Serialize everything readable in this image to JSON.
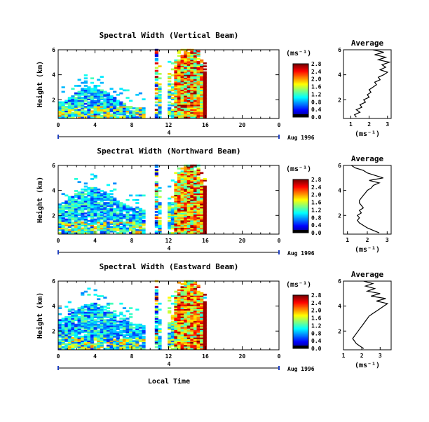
{
  "chart_data": [
    {
      "type": "heatmap",
      "title": "Spectral Width (Vertical Beam)",
      "ylabel": "Height (km)",
      "xlabel": "",
      "x_ticks": [
        "0",
        "4",
        "8",
        "12",
        "16",
        "20",
        "0"
      ],
      "y_ticks": [
        "2",
        "4",
        "6"
      ],
      "xlim": [
        0,
        24
      ],
      "ylim": [
        0.5,
        6
      ],
      "colorbar_unit": "(ms⁻¹)",
      "colorbar_ticks": [
        "0.0",
        "0.4",
        "0.8",
        "1.2",
        "1.6",
        "2.0",
        "2.4",
        "2.8"
      ],
      "date_label": "Aug 1996",
      "date_marker": "4",
      "grid": false
    },
    {
      "type": "heatmap",
      "title": "Spectral Width (Northward Beam)",
      "ylabel": "Height (km)",
      "xlabel": "",
      "x_ticks": [
        "0",
        "4",
        "8",
        "12",
        "16",
        "20",
        "0"
      ],
      "y_ticks": [
        "2",
        "4",
        "6"
      ],
      "xlim": [
        0,
        24
      ],
      "ylim": [
        0.5,
        6
      ],
      "colorbar_unit": "(ms⁻¹)",
      "colorbar_ticks": [
        "0.0",
        "0.4",
        "0.8",
        "1.2",
        "1.6",
        "2.0",
        "2.4",
        "2.8"
      ],
      "date_label": "Aug 1996",
      "date_marker": "4",
      "grid": false
    },
    {
      "type": "heatmap",
      "title": "Spectral Width (Eastward Beam)",
      "ylabel": "Height (km)",
      "xlabel": "Local Time",
      "x_ticks": [
        "0",
        "4",
        "8",
        "12",
        "16",
        "20",
        "0"
      ],
      "y_ticks": [
        "2",
        "4",
        "6"
      ],
      "xlim": [
        0,
        24
      ],
      "ylim": [
        0.5,
        6
      ],
      "colorbar_unit": "(ms⁻¹)",
      "colorbar_ticks": [
        "0.0",
        "0.4",
        "0.8",
        "1.2",
        "1.6",
        "2.0",
        "2.4",
        "2.8"
      ],
      "date_label": "Aug 1996",
      "date_marker": "4",
      "grid": false
    },
    {
      "type": "line",
      "title": "Average",
      "xlabel": "(ms⁻¹)",
      "x_ticks": [
        "1",
        "2",
        "3"
      ],
      "y_ticks": [
        "2",
        "4",
        "6"
      ],
      "xlim": [
        0.6,
        3.2
      ],
      "ylim": [
        0.5,
        6
      ],
      "x": [
        1.3,
        1.2,
        1.5,
        1.3,
        1.6,
        1.5,
        1.8,
        1.7,
        2.0,
        1.9,
        2.1,
        2.0,
        2.2,
        2.4,
        2.3,
        2.6,
        2.5,
        2.8,
        3.0,
        2.6,
        2.9,
        2.7,
        3.1,
        2.5,
        2.9,
        2.3,
        2.8,
        2.2
      ],
      "y": [
        0.6,
        0.8,
        1.0,
        1.2,
        1.4,
        1.6,
        1.8,
        2.0,
        2.2,
        2.4,
        2.6,
        2.8,
        3.0,
        3.2,
        3.4,
        3.6,
        3.8,
        4.0,
        4.2,
        4.4,
        4.6,
        4.8,
        5.0,
        5.2,
        5.4,
        5.6,
        5.8,
        6.0
      ]
    },
    {
      "type": "line",
      "title": "Average",
      "xlabel": "(ms⁻¹)",
      "x_ticks": [
        "1",
        "2",
        "3"
      ],
      "y_ticks": [
        "2",
        "4",
        "6"
      ],
      "xlim": [
        0.8,
        3.2
      ],
      "ylim": [
        0.5,
        6
      ],
      "x": [
        2.6,
        2.3,
        2.0,
        1.8,
        1.6,
        1.5,
        1.6,
        1.5,
        1.7,
        1.6,
        1.8,
        1.7,
        1.6,
        1.6,
        1.7,
        1.8,
        1.9,
        2.0,
        2.2,
        2.3,
        2.6,
        2.1,
        2.8,
        2.4,
        2.0,
        1.8,
        1.4,
        1.2
      ],
      "y": [
        0.6,
        0.8,
        1.0,
        1.2,
        1.4,
        1.6,
        1.8,
        2.0,
        2.2,
        2.4,
        2.6,
        2.8,
        3.0,
        3.2,
        3.4,
        3.6,
        3.8,
        4.0,
        4.2,
        4.4,
        4.6,
        4.8,
        5.0,
        5.2,
        5.4,
        5.6,
        5.8,
        6.0
      ]
    },
    {
      "type": "line",
      "title": "Average",
      "xlabel": "(ms⁻¹)",
      "x_ticks": [
        "1",
        "2",
        "3"
      ],
      "y_ticks": [
        "2",
        "4",
        "6"
      ],
      "xlim": [
        1.0,
        3.6
      ],
      "ylim": [
        0.5,
        6
      ],
      "x": [
        2.1,
        1.9,
        1.7,
        1.6,
        1.5,
        1.6,
        1.7,
        1.8,
        1.9,
        2.0,
        2.1,
        2.2,
        2.3,
        2.4,
        2.6,
        2.8,
        3.0,
        3.2,
        3.4,
        2.8,
        3.3,
        2.5,
        3.0,
        2.3,
        2.7,
        2.2,
        2.6,
        2.1
      ],
      "y": [
        0.6,
        0.8,
        1.0,
        1.2,
        1.4,
        1.6,
        1.8,
        2.0,
        2.2,
        2.4,
        2.6,
        2.8,
        3.0,
        3.2,
        3.4,
        3.6,
        3.8,
        4.0,
        4.2,
        4.4,
        4.6,
        4.8,
        5.0,
        5.2,
        5.4,
        5.6,
        5.8,
        6.0
      ]
    }
  ]
}
